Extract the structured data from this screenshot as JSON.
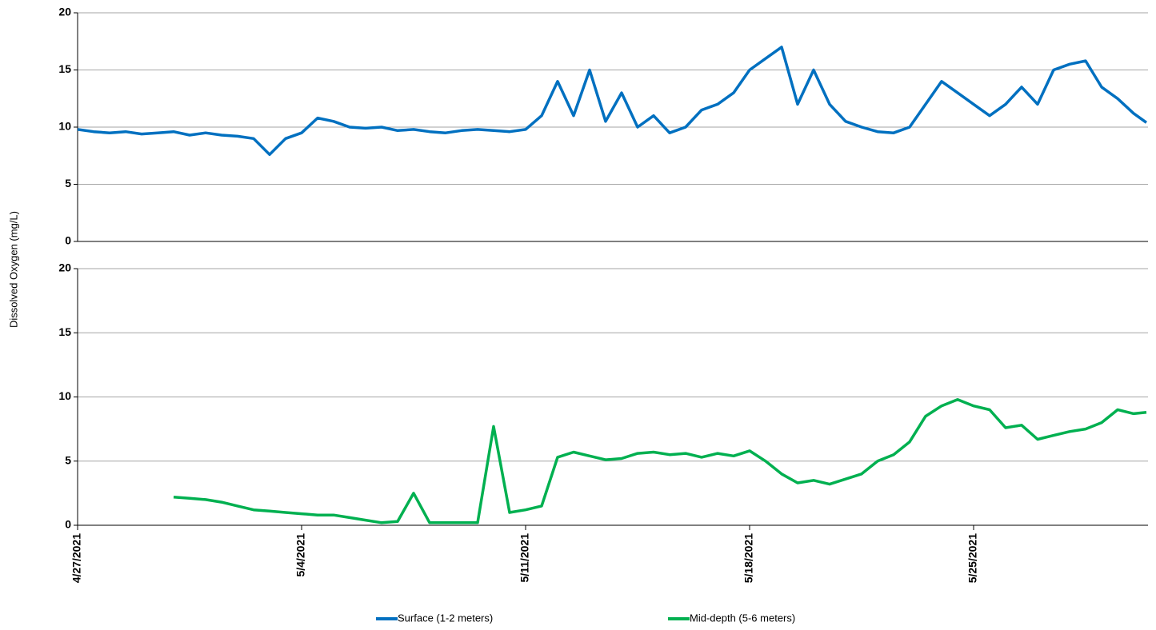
{
  "chart_data": [
    {
      "type": "line",
      "ylabel": "Dissolved Oxygen (mg/L)",
      "x": [
        0,
        0.5,
        1,
        1.5,
        2,
        2.5,
        3,
        3.5,
        4,
        4.5,
        5,
        5.5,
        6,
        6.5,
        7,
        7.5,
        8,
        8.5,
        9,
        9.5,
        10,
        10.5,
        11,
        11.5,
        12,
        12.5,
        13,
        13.5,
        14,
        14.5,
        15,
        15.5,
        16,
        16.5,
        17,
        17.5,
        18,
        18.5,
        19,
        19.5,
        20,
        20.5,
        21,
        21.5,
        22,
        22.5,
        23,
        23.5,
        24,
        24.5,
        25,
        25.5,
        26,
        26.5,
        27,
        27.5,
        28,
        28.5,
        29,
        29.5,
        30,
        30.5,
        31,
        31.5,
        32,
        32.5,
        33,
        33.4
      ],
      "series": [
        {
          "name": "Surface (1-2 meters)",
          "color": "#0070c0",
          "values": [
            9.8,
            9.6,
            9.5,
            9.6,
            9.4,
            9.5,
            9.6,
            9.3,
            9.5,
            9.3,
            9.2,
            9.0,
            7.6,
            9.0,
            9.5,
            10.8,
            10.5,
            10,
            9.9,
            10,
            9.7,
            9.8,
            9.6,
            9.5,
            9.7,
            9.8,
            9.7,
            9.6,
            9.8,
            11,
            14,
            11,
            15,
            10.5,
            13,
            10,
            11,
            9.5,
            10,
            11.5,
            12,
            13,
            15,
            16,
            17,
            12,
            15,
            12,
            10.5,
            10,
            9.6,
            9.5,
            10,
            12,
            14,
            13,
            12,
            11,
            12,
            13.5,
            12,
            15,
            15.5,
            15.8,
            13.5,
            12.5,
            11.2,
            10.4
          ]
        }
      ],
      "xlim": [
        0,
        33.45
      ],
      "ylim": [
        0,
        20
      ],
      "yticks": [
        0,
        5,
        10,
        15,
        20
      ],
      "grid": true
    },
    {
      "type": "line",
      "x": [
        0,
        0.5,
        1,
        1.5,
        2,
        2.5,
        3,
        3.5,
        4,
        4.5,
        5,
        5.5,
        6,
        6.5,
        7,
        7.5,
        8,
        8.5,
        9,
        9.5,
        10,
        10.5,
        11,
        11.5,
        12,
        12.5,
        13,
        13.5,
        14,
        14.5,
        15,
        15.5,
        16,
        16.5,
        17,
        17.5,
        18,
        18.5,
        19,
        19.5,
        20,
        20.5,
        21,
        21.5,
        22,
        22.5,
        23,
        23.5,
        24,
        24.5,
        25,
        25.5,
        26,
        26.5,
        27,
        27.5,
        28,
        28.5,
        29,
        29.5,
        30,
        30.5,
        31,
        31.5,
        32,
        32.5,
        33,
        33.4
      ],
      "series": [
        {
          "name": "Mid-depth (5-6 meters)",
          "color": "#00b050",
          "values": [
            null,
            null,
            null,
            null,
            null,
            null,
            2.2,
            2.1,
            2.0,
            1.8,
            1.5,
            1.2,
            1.1,
            1.0,
            0.9,
            0.8,
            0.8,
            0.6,
            0.4,
            0.2,
            0.3,
            2.5,
            0.2,
            0.2,
            0.2,
            0.2,
            7.7,
            1.0,
            1.2,
            1.5,
            5.3,
            5.7,
            5.4,
            5.1,
            5.2,
            5.6,
            5.7,
            5.5,
            5.6,
            5.3,
            5.6,
            5.4,
            5.8,
            5.0,
            4.0,
            3.3,
            3.5,
            3.2,
            3.6,
            4.0,
            5.0,
            5.5,
            6.5,
            8.5,
            9.3,
            9.8,
            9.3,
            9.0,
            7.6,
            7.8,
            6.7,
            7.0,
            7.3,
            7.5,
            8.0,
            9.0,
            8.7,
            8.8
          ]
        }
      ],
      "xlim": [
        0,
        33.45
      ],
      "ylim": [
        0,
        20
      ],
      "yticks": [
        0,
        5,
        10,
        15,
        20
      ],
      "grid": true,
      "xticks": [
        {
          "value": 0,
          "label": "4/27/2021"
        },
        {
          "value": 7,
          "label": "5/4/2021"
        },
        {
          "value": 14,
          "label": "5/11/2021"
        },
        {
          "value": 21,
          "label": "5/18/2021"
        },
        {
          "value": 28,
          "label": "5/25/2021"
        }
      ]
    }
  ]
}
